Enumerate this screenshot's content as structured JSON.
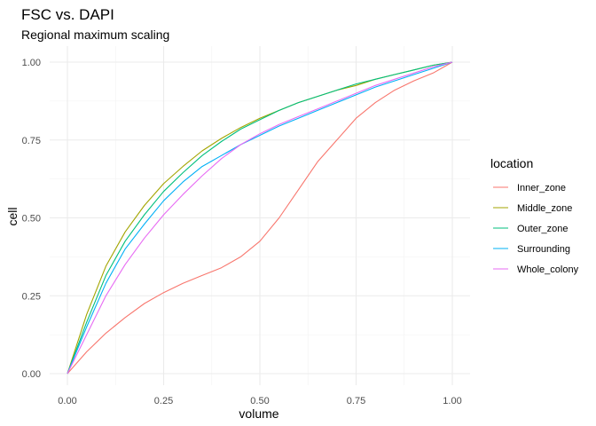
{
  "chart_data": {
    "type": "line",
    "title": "FSC vs. DAPI",
    "subtitle": "Regional maximum scaling",
    "xlabel": "volume",
    "ylabel": "cell",
    "xlim": [
      0,
      1
    ],
    "ylim": [
      0,
      1
    ],
    "x_ticks": [
      "0.00",
      "0.25",
      "0.50",
      "0.75",
      "1.00"
    ],
    "y_ticks": [
      "0.00",
      "0.25",
      "0.50",
      "0.75",
      "1.00"
    ],
    "grid": true,
    "legend": {
      "title": "location",
      "position": "right"
    },
    "series": [
      {
        "name": "Inner_zone",
        "color": "#F8766D",
        "x": [
          0,
          0.05,
          0.1,
          0.15,
          0.2,
          0.25,
          0.3,
          0.35,
          0.4,
          0.45,
          0.5,
          0.55,
          0.6,
          0.65,
          0.7,
          0.75,
          0.8,
          0.85,
          0.9,
          0.95,
          1.0
        ],
        "y": [
          0,
          0.07,
          0.13,
          0.18,
          0.225,
          0.26,
          0.29,
          0.315,
          0.34,
          0.375,
          0.425,
          0.5,
          0.59,
          0.68,
          0.75,
          0.82,
          0.87,
          0.91,
          0.94,
          0.965,
          1.0
        ]
      },
      {
        "name": "Middle_zone",
        "color": "#A3A500",
        "x": [
          0,
          0.05,
          0.1,
          0.15,
          0.2,
          0.25,
          0.3,
          0.35,
          0.4,
          0.45,
          0.5,
          0.55,
          0.6,
          0.65,
          0.7,
          0.75,
          0.8,
          0.85,
          0.9,
          0.95,
          1.0
        ],
        "y": [
          0,
          0.19,
          0.345,
          0.455,
          0.54,
          0.61,
          0.665,
          0.715,
          0.755,
          0.79,
          0.82,
          0.845,
          0.87,
          0.89,
          0.91,
          0.925,
          0.945,
          0.96,
          0.975,
          0.99,
          1.0
        ]
      },
      {
        "name": "Outer_zone",
        "color": "#00BF7D",
        "x": [
          0,
          0.05,
          0.1,
          0.15,
          0.2,
          0.25,
          0.3,
          0.35,
          0.4,
          0.45,
          0.5,
          0.55,
          0.6,
          0.65,
          0.7,
          0.75,
          0.8,
          0.85,
          0.9,
          0.95,
          1.0
        ],
        "y": [
          0,
          0.165,
          0.315,
          0.425,
          0.51,
          0.585,
          0.645,
          0.7,
          0.745,
          0.785,
          0.815,
          0.845,
          0.87,
          0.89,
          0.91,
          0.93,
          0.945,
          0.96,
          0.975,
          0.99,
          1.0
        ]
      },
      {
        "name": "Surrounding",
        "color": "#00B0F6",
        "x": [
          0,
          0.05,
          0.1,
          0.15,
          0.2,
          0.25,
          0.3,
          0.35,
          0.4,
          0.45,
          0.5,
          0.55,
          0.6,
          0.65,
          0.7,
          0.75,
          0.8,
          0.85,
          0.9,
          0.95,
          1.0
        ],
        "y": [
          0,
          0.15,
          0.29,
          0.4,
          0.48,
          0.555,
          0.615,
          0.665,
          0.7,
          0.735,
          0.765,
          0.795,
          0.82,
          0.845,
          0.87,
          0.895,
          0.92,
          0.94,
          0.96,
          0.98,
          1.0
        ]
      },
      {
        "name": "Whole_colony",
        "color": "#E76BF3",
        "x": [
          0,
          0.05,
          0.1,
          0.15,
          0.2,
          0.25,
          0.3,
          0.35,
          0.4,
          0.45,
          0.5,
          0.55,
          0.6,
          0.65,
          0.7,
          0.75,
          0.8,
          0.85,
          0.9,
          0.95,
          1.0
        ],
        "y": [
          0,
          0.125,
          0.25,
          0.35,
          0.435,
          0.51,
          0.575,
          0.635,
          0.69,
          0.735,
          0.77,
          0.8,
          0.825,
          0.85,
          0.875,
          0.9,
          0.925,
          0.945,
          0.965,
          0.985,
          1.0
        ]
      }
    ]
  }
}
